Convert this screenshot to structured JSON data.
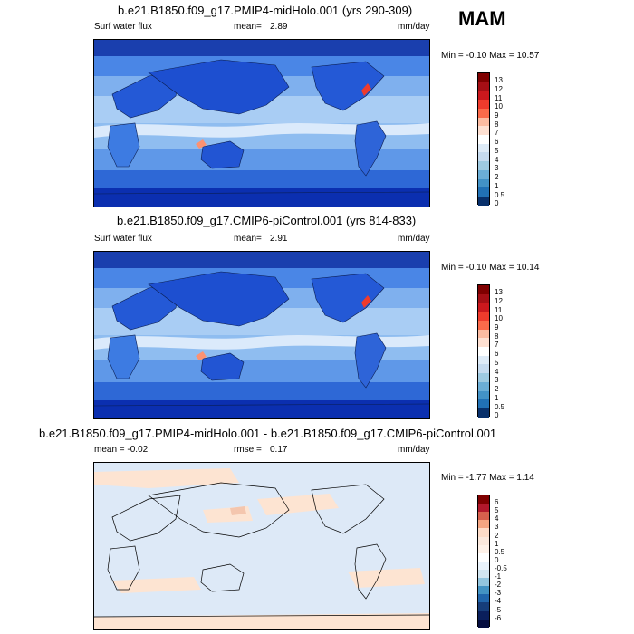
{
  "season": "MAM",
  "panels": [
    {
      "title": "b.e21.B1850.f09_g17.PMIP4-midHolo.001 (yrs 290-309)",
      "left_label": "Surf water flux",
      "mean_label": "mean=",
      "mean_value": "2.89",
      "units": "mm/day",
      "minmax": "Min =  -0.10 Max =  10.57",
      "colorbar_labels": [
        "13",
        "12",
        "11",
        "10",
        "9",
        "8",
        "7",
        "6",
        "5",
        "4",
        "3",
        "2",
        "1",
        "0.5",
        "0"
      ]
    },
    {
      "title": "b.e21.B1850.f09_g17.CMIP6-piControl.001 (yrs 814-833)",
      "left_label": "Surf water flux",
      "mean_label": "mean=",
      "mean_value": "2.91",
      "units": "mm/day",
      "minmax": "Min =  -0.10 Max =  10.14",
      "colorbar_labels": [
        "13",
        "12",
        "11",
        "10",
        "9",
        "8",
        "7",
        "6",
        "5",
        "4",
        "3",
        "2",
        "1",
        "0.5",
        "0"
      ]
    },
    {
      "title": "b.e21.B1850.f09_g17.PMIP4-midHolo.001 - b.e21.B1850.f09_g17.CMIP6-piControl.001",
      "left_label": "mean =  -0.02",
      "mean_label": "rmse =",
      "mean_value": "0.17",
      "units": "mm/day",
      "minmax": "Min =  -1.77 Max =  1.14",
      "colorbar_labels": [
        "6",
        "5",
        "4",
        "3",
        "2",
        "1",
        "0.5",
        "0",
        "-0.5",
        "-1",
        "-2",
        "-3",
        "-4",
        "-5",
        "-6"
      ]
    }
  ],
  "colors": {
    "abs_scale": [
      "#7f0000",
      "#a50f15",
      "#cb181d",
      "#ef3b2c",
      "#fb6a4a",
      "#fc9272",
      "#fcbba1",
      "#fee0d2",
      "#ffffff",
      "#deebf7",
      "#c6dbef",
      "#9ecae1",
      "#6baed6",
      "#4292c6",
      "#2171b5",
      "#08519c",
      "#08306b"
    ],
    "diff_scale": [
      "#7f0000",
      "#b2182b",
      "#d6604d",
      "#f4a582",
      "#fddbc7",
      "#fbe8dc",
      "#fef1e8",
      "#ffffff",
      "#eaf3fb",
      "#d1e5f0",
      "#92c5de",
      "#4393c3",
      "#2166ac",
      "#163d7a",
      "#0a1f5c",
      "#050d3f"
    ]
  }
}
